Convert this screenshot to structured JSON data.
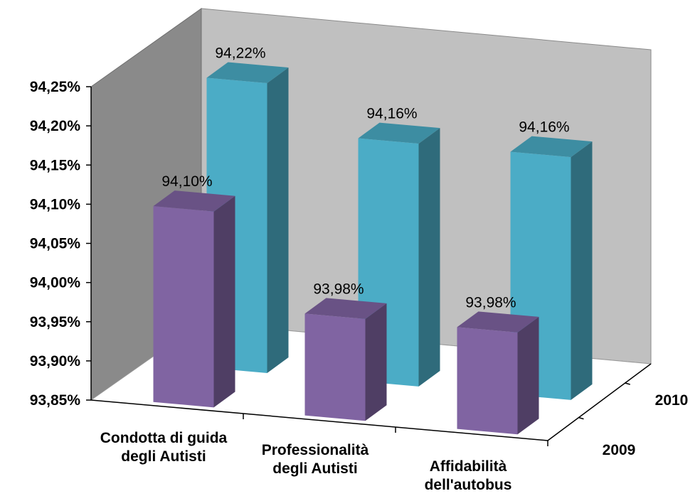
{
  "chart_data": {
    "type": "bar",
    "style": "3d-clustered-depth",
    "categories": [
      "Condotta di guida degli Autisti",
      "Professionalità degli Autisti",
      "Affidabilità dell'autobus"
    ],
    "category_lines": [
      [
        "Condotta di guida",
        "degli Autisti"
      ],
      [
        "Professionalità",
        "degli Autisti"
      ],
      [
        "Affidabilità",
        "dell'autobus"
      ]
    ],
    "series": [
      {
        "name": "2009",
        "values": [
          94.1,
          93.98,
          93.98
        ],
        "labels": [
          "94,10%",
          "93,98%",
          "93,98%"
        ],
        "color": "#8064A2"
      },
      {
        "name": "2010",
        "values": [
          94.22,
          94.16,
          94.16
        ],
        "labels": [
          "94,22%",
          "94,16%",
          "94,16%"
        ],
        "color": "#4BACC6"
      }
    ],
    "yticks": [
      93.85,
      93.9,
      93.95,
      94.0,
      94.05,
      94.1,
      94.15,
      94.2,
      94.25
    ],
    "ytick_labels": [
      "93,85%",
      "93,90%",
      "93,95%",
      "94,00%",
      "94,05%",
      "94,10%",
      "94,15%",
      "94,20%",
      "94,25%"
    ],
    "ylim": [
      93.85,
      94.25
    ],
    "title": "",
    "xlabel": "",
    "ylabel": "",
    "grid": false,
    "legend": "none"
  }
}
